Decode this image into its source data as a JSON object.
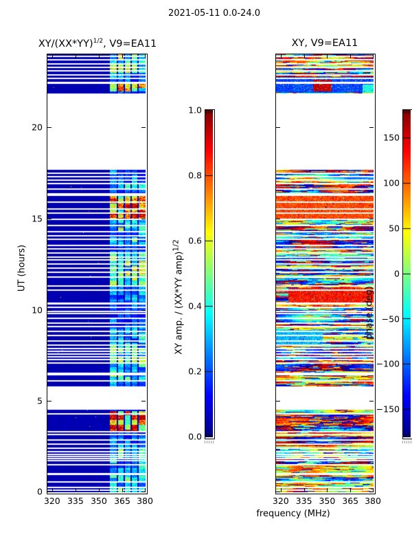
{
  "figure": {
    "title": "2021-05-11 0.0-24.0",
    "background": "#ffffff",
    "axis_color": "#000000",
    "no_data_color": "#ffffff"
  },
  "axes": {
    "ylabel": "UT (hours)",
    "xlabel": "frequency (MHz)",
    "yticks": [
      "0",
      "5",
      "10",
      "15",
      "20"
    ],
    "xticks": [
      "320",
      "335",
      "350",
      "365",
      "380"
    ]
  },
  "observation": {
    "date": "2021-05-11",
    "ut_range_hours": [
      0.0,
      24.0
    ],
    "time_blocks_ut": [
      [
        0.0,
        4.51
      ],
      [
        5.82,
        17.66
      ],
      [
        21.86,
        24.0
      ]
    ],
    "data_gaps_ut": [
      [
        4.51,
        5.82
      ],
      [
        17.66,
        21.86
      ]
    ],
    "missing_rows_ut": [
      [
        23.88,
        2
      ],
      [
        23.68,
        2
      ],
      [
        23.48,
        2
      ],
      [
        23.28,
        2
      ],
      [
        23.08,
        2
      ],
      [
        22.88,
        2
      ],
      [
        22.68,
        2
      ],
      [
        22.42,
        3
      ],
      [
        17.5,
        2
      ],
      [
        17.28,
        2
      ],
      [
        17.12,
        2
      ],
      [
        16.9,
        2
      ],
      [
        16.62,
        2
      ],
      [
        16.3,
        4
      ],
      [
        15.9,
        2
      ],
      [
        15.52,
        2
      ],
      [
        15.28,
        2
      ],
      [
        14.95,
        2
      ],
      [
        14.6,
        2
      ],
      [
        14.28,
        2
      ],
      [
        14.05,
        2
      ],
      [
        13.88,
        2
      ],
      [
        13.52,
        2
      ],
      [
        13.32,
        2
      ],
      [
        13.12,
        2
      ],
      [
        12.88,
        2
      ],
      [
        12.72,
        2
      ],
      [
        12.5,
        2
      ],
      [
        12.28,
        2
      ],
      [
        12.05,
        2
      ],
      [
        11.78,
        2
      ],
      [
        11.32,
        2
      ],
      [
        11.08,
        2
      ],
      [
        10.35,
        3
      ],
      [
        10.12,
        2
      ],
      [
        9.92,
        2
      ],
      [
        9.78,
        2
      ],
      [
        9.52,
        2
      ],
      [
        9.28,
        2
      ],
      [
        9.08,
        2
      ],
      [
        8.82,
        2
      ],
      [
        8.58,
        2
      ],
      [
        8.28,
        2
      ],
      [
        8.08,
        2
      ],
      [
        7.88,
        2
      ],
      [
        7.72,
        2
      ],
      [
        7.58,
        2
      ],
      [
        7.42,
        2
      ],
      [
        7.28,
        2
      ],
      [
        7.08,
        2
      ],
      [
        6.48,
        4
      ],
      [
        6.12,
        2
      ],
      [
        4.3,
        2
      ],
      [
        3.32,
        2
      ],
      [
        3.18,
        2
      ],
      [
        2.88,
        2
      ],
      [
        2.62,
        2
      ],
      [
        2.42,
        2
      ],
      [
        2.22,
        2
      ],
      [
        2.08,
        2
      ],
      [
        1.95,
        2
      ],
      [
        1.85,
        2
      ],
      [
        1.75,
        2
      ],
      [
        1.52,
        2
      ],
      [
        0.98,
        3
      ],
      [
        0.55,
        2
      ],
      [
        0.25,
        2
      ],
      [
        0.12,
        2
      ]
    ]
  },
  "chart_data": [
    {
      "type": "heatmap",
      "panel": "left",
      "title_base": "XY/(XX*YY)",
      "title_sup": "1/2",
      "title_rest": ", V9=EA11",
      "xlim_mhz": [
        317,
        380
      ],
      "ylim_ut": [
        0,
        24
      ],
      "xticks": [
        320,
        335,
        350,
        365,
        380
      ],
      "yticks": [
        0,
        5,
        10,
        15,
        20
      ],
      "colormap": "jet",
      "colorbar": {
        "label_base": "XY amp. / (XX*YY amp)",
        "label_sup": "1/2",
        "min": 0.0,
        "max": 1.0,
        "ticks": [
          "1.0",
          "0.8",
          "0.6",
          "0.4",
          "0.2",
          "0.0"
        ]
      },
      "background_amplitude": 0.04,
      "rfi_band": {
        "freq_range_mhz": [
          357,
          380
        ],
        "subband_gap_freqs_mhz": [
          [
            361.3,
            362.3
          ],
          [
            365.7,
            366.7
          ],
          [
            370.1,
            371.1
          ],
          [
            374.5,
            375.5
          ]
        ],
        "typical_amp_range": [
          0.15,
          0.55
        ],
        "hot_intervals_ut": [
          [
            23.0,
            24.0,
            0.5
          ],
          [
            21.95,
            22.4,
            0.6
          ],
          [
            15.0,
            16.25,
            0.78
          ],
          [
            3.35,
            4.45,
            0.85
          ]
        ]
      }
    },
    {
      "type": "heatmap",
      "panel": "right",
      "title": "XY, V9=EA11",
      "xlim_mhz": [
        317,
        380
      ],
      "ylim_ut": [
        0,
        24
      ],
      "xticks": [
        320,
        335,
        350,
        365,
        380
      ],
      "yticks": [
        0,
        5,
        10,
        15,
        20
      ],
      "colormap": "jet",
      "colorbar": {
        "label": "phase (deg)",
        "min": -180,
        "max": 180,
        "ticks": [
          "150",
          "100",
          "50",
          "0",
          "−50",
          "−100",
          "−150"
        ]
      },
      "content": "wrapped interferometric phase noise, -180 to 180 deg, horizontally streaky",
      "phase_features": [
        {
          "ut": [
            21.9,
            22.75
          ],
          "freq": [
            317,
            380
          ],
          "phase": -110
        },
        {
          "ut": [
            21.95,
            22.6
          ],
          "freq": [
            341,
            353
          ],
          "phase": 155
        },
        {
          "ut": [
            21.9,
            22.35
          ],
          "freq": [
            373,
            380
          ],
          "phase": -35
        },
        {
          "ut": [
            15.0,
            16.3
          ],
          "freq": [
            317,
            380
          ],
          "phase": 110
        },
        {
          "ut": [
            10.4,
            11.2
          ],
          "freq": [
            325,
            380
          ],
          "phase": 130
        },
        {
          "ut": [
            8.1,
            8.9
          ],
          "freq": [
            317,
            347
          ],
          "phase": -70
        }
      ]
    }
  ]
}
